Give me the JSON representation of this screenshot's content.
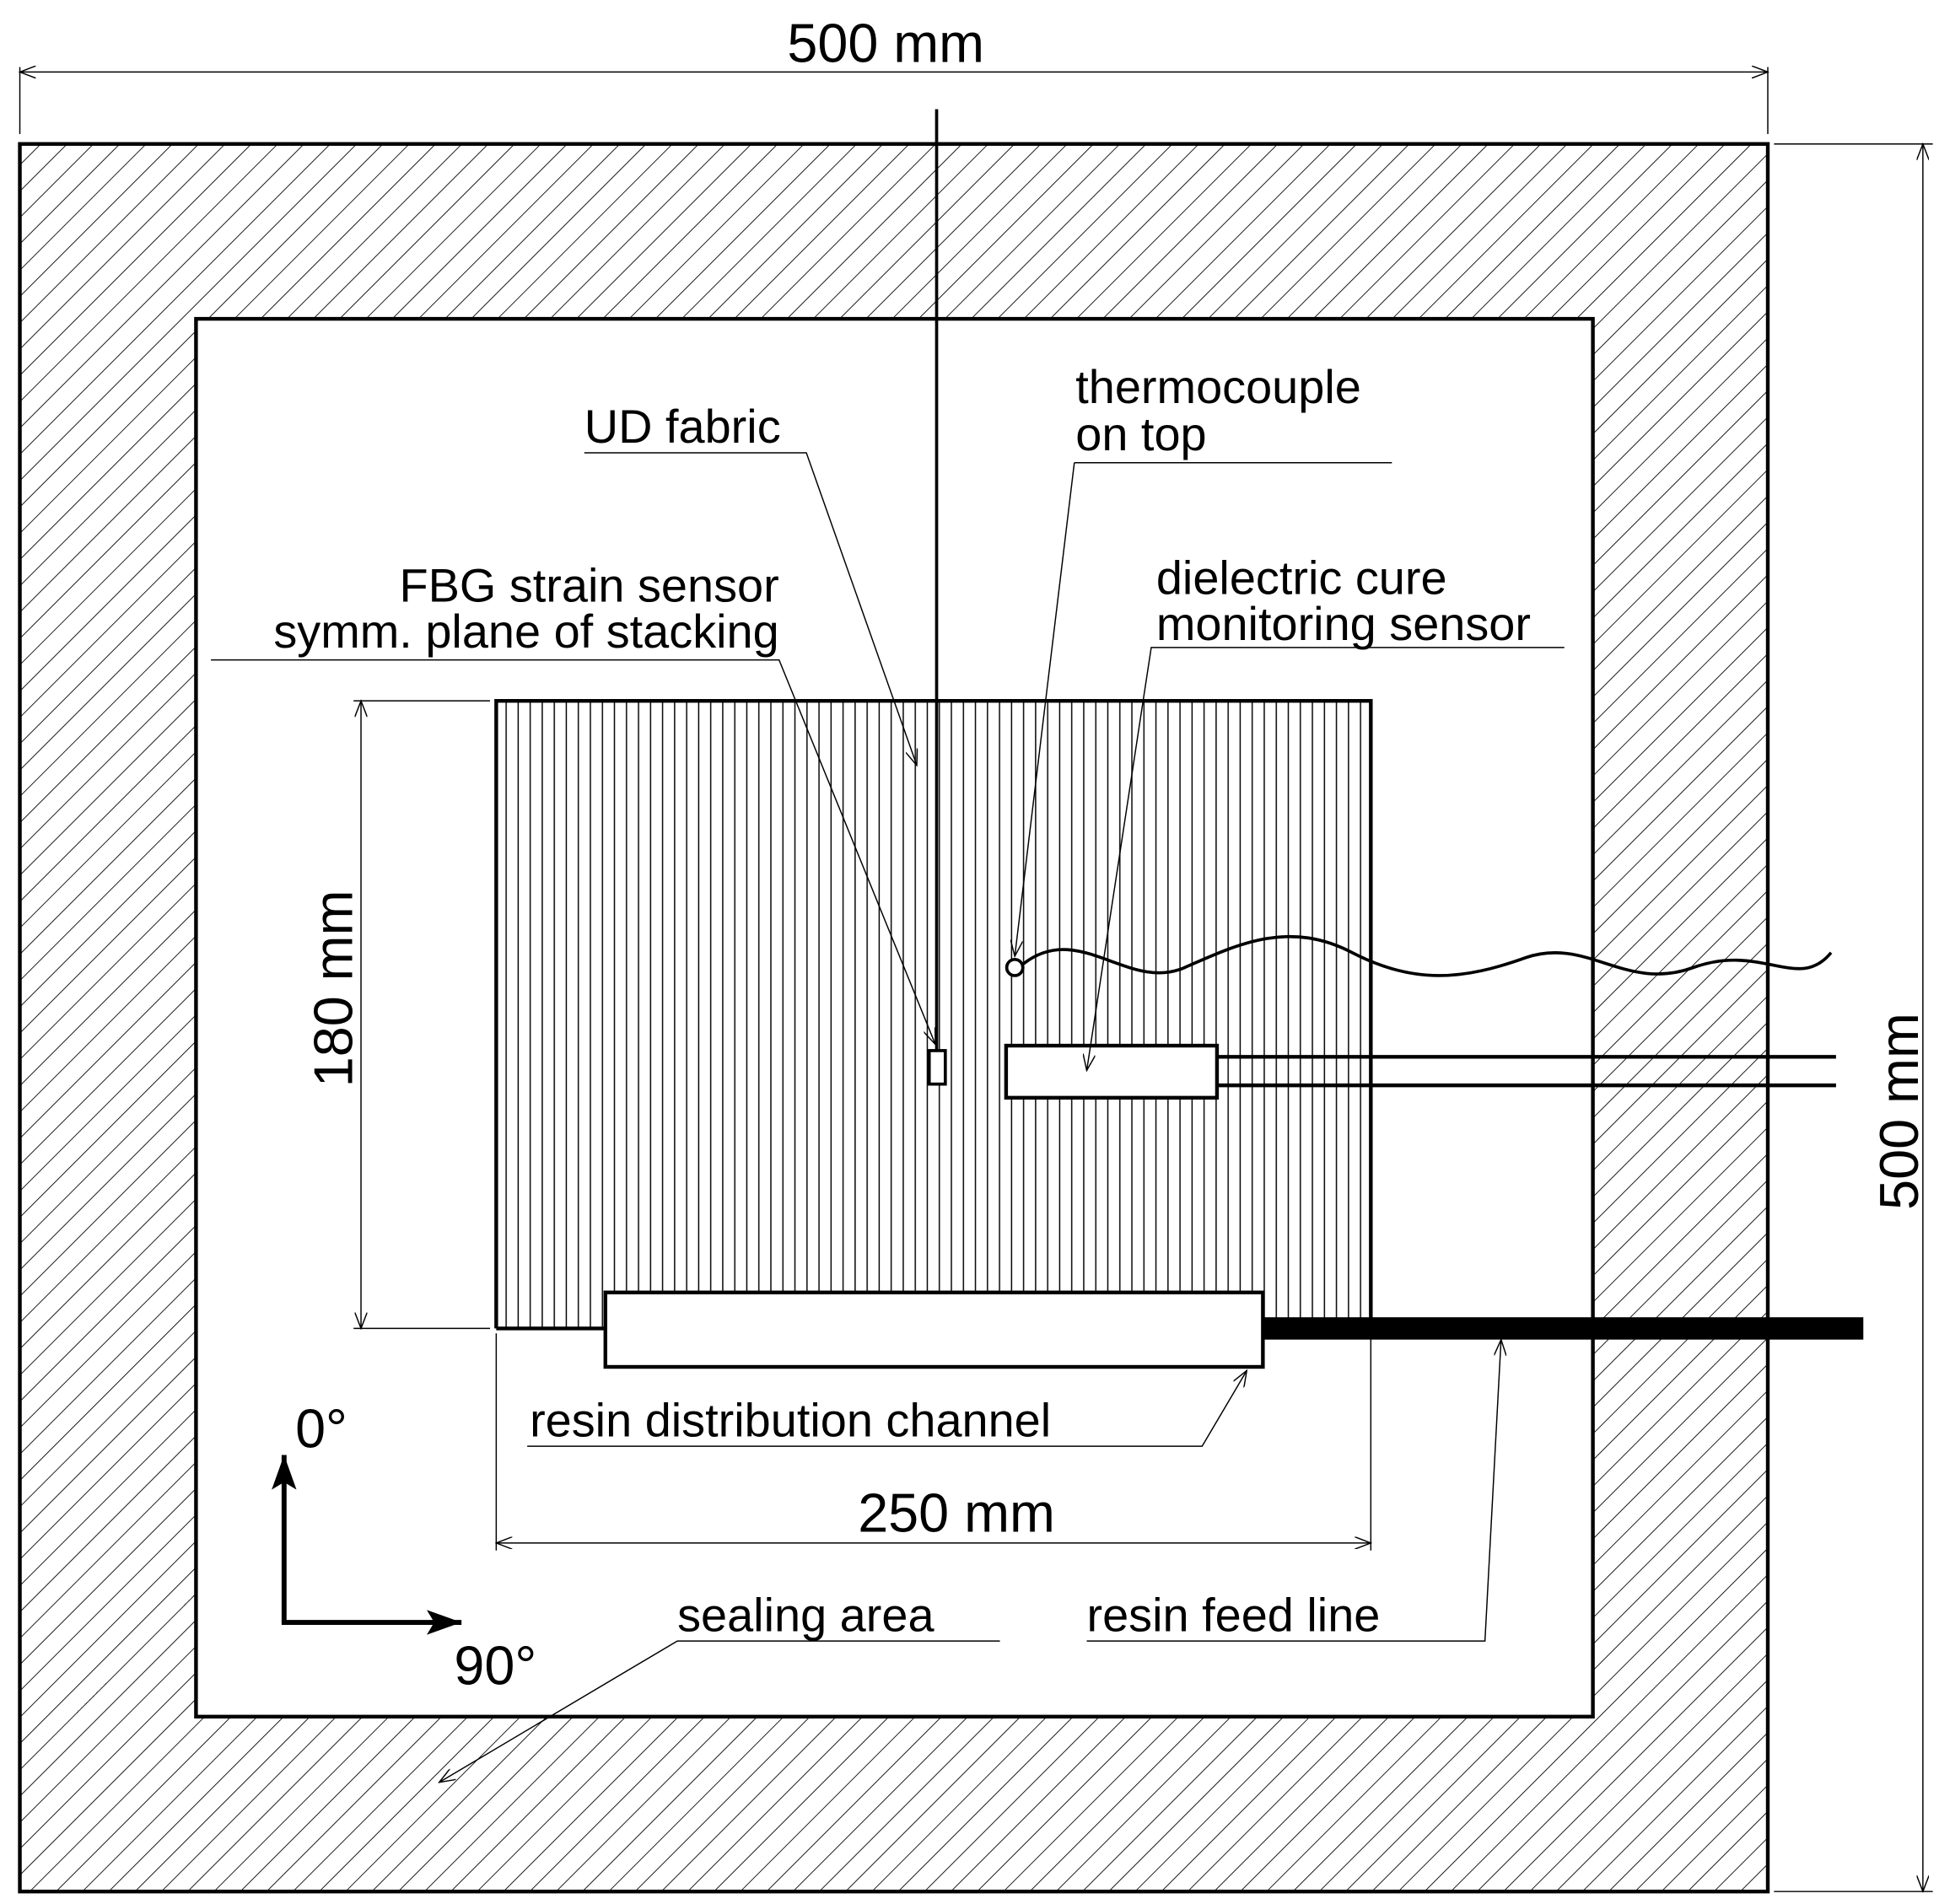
{
  "dimensions": {
    "overall_width": "500 mm",
    "overall_height": "500 mm",
    "laminate_width": "250 mm",
    "laminate_height": "180 mm"
  },
  "labels": {
    "ud_fabric": "UD fabric",
    "thermocouple_line1": "thermocouple",
    "thermocouple_line2": "on top",
    "fbg_line1": "FBG strain sensor",
    "fbg_line2": "symm. plane of stacking",
    "dielectric_line1": "dielectric cure",
    "dielectric_line2": "monitoring sensor",
    "resin_channel": "resin distribution channel",
    "sealing_area": "sealing area",
    "resin_feed": "resin feed  line",
    "angle_0": "0°",
    "angle_90": "90°"
  }
}
